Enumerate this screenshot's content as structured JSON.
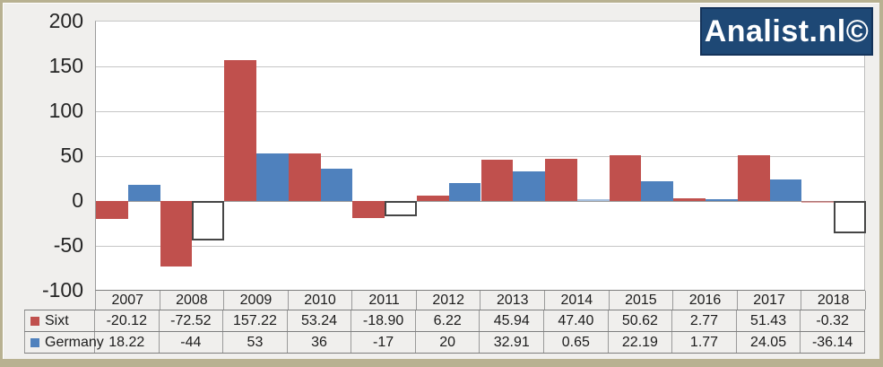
{
  "logo": {
    "text": "Analist.nl©"
  },
  "colors": {
    "sixt": "#C0504D",
    "germany": "#4F81BD",
    "logo_bg": "#1E4875",
    "logo_border": "#14335A",
    "negative_box_fill": "#FFFFFF",
    "negative_box_border": "#454545",
    "frame_border": "#B8B191",
    "background": "#F0EFED",
    "gridline": "#C6C6C6",
    "axis_line": "#9C9C9C"
  },
  "chart_data": {
    "type": "bar",
    "title": "",
    "categories": [
      "2007",
      "2008",
      "2009",
      "2010",
      "2011",
      "2012",
      "2013",
      "2014",
      "2015",
      "2016",
      "2017",
      "2018"
    ],
    "series": [
      {
        "name": "Sixt",
        "color": "#C0504D",
        "values": [
          -20.12,
          -72.52,
          157.22,
          53.24,
          -18.9,
          6.22,
          45.94,
          47.4,
          50.62,
          2.77,
          51.43,
          -0.32
        ]
      },
      {
        "name": "Germany",
        "color": "#4F81BD",
        "negative_fill": "white-outlined-box",
        "values": [
          18.22,
          -44,
          53,
          36,
          -17,
          20,
          32.91,
          0.65,
          22.19,
          1.77,
          24.05,
          -36.14
        ]
      }
    ],
    "ylim": [
      -100,
      200
    ],
    "yticks": [
      200,
      150,
      100,
      50,
      0,
      -50,
      -100
    ],
    "grid": true,
    "legend_position": "data-table-left"
  },
  "table": {
    "years": [
      "2007",
      "2008",
      "2009",
      "2010",
      "2011",
      "2012",
      "2013",
      "2014",
      "2015",
      "2016",
      "2017",
      "2018"
    ],
    "rows": [
      {
        "label": "Sixt",
        "swatch": "#C0504D",
        "values": [
          "-20.12",
          "-72.52",
          "157.22",
          "53.24",
          "-18.90",
          "6.22",
          "45.94",
          "47.40",
          "50.62",
          "2.77",
          "51.43",
          "-0.32"
        ]
      },
      {
        "label": "Germany",
        "swatch": "#4F81BD",
        "values": [
          "18.22",
          "-44",
          "53",
          "36",
          "-17",
          "20",
          "32.91",
          "0.65",
          "22.19",
          "1.77",
          "24.05",
          "-36.14"
        ]
      }
    ]
  }
}
